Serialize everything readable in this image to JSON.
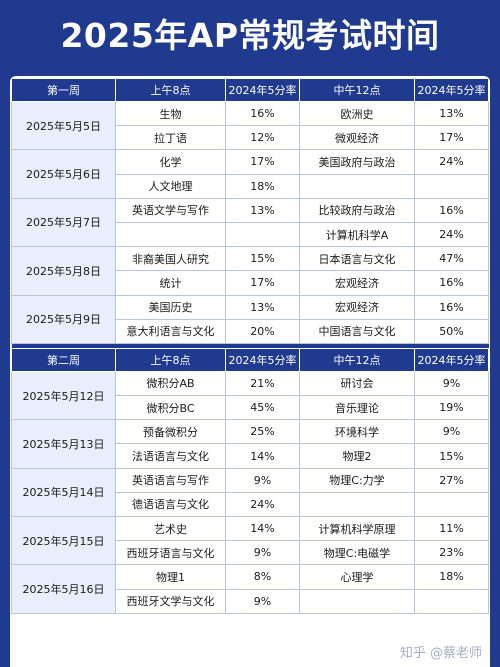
{
  "title": "2025年AP常规考试时间",
  "colors": {
    "brand": "#1f3a8e",
    "grid": "#b8c3dc",
    "date_bg": "#e8eefb"
  },
  "weeks": [
    {
      "headers": [
        "第一周",
        "上午8点",
        "2024年5分率",
        "中午12点",
        "2024年5分率"
      ],
      "days": [
        {
          "date": "2025年5月5日",
          "rows": [
            [
              "生物",
              "16%",
              "欧洲史",
              "13%"
            ],
            [
              "拉丁语",
              "12%",
              "微观经济",
              "17%"
            ]
          ]
        },
        {
          "date": "2025年5月6日",
          "rows": [
            [
              "化学",
              "17%",
              "美国政府与政治",
              "24%"
            ],
            [
              "人文地理",
              "18%",
              "",
              ""
            ]
          ]
        },
        {
          "date": "2025年5月7日",
          "rows": [
            [
              "英语文学与写作",
              "13%",
              "比较政府与政治",
              "16%"
            ],
            [
              "",
              "",
              "计算机科学A",
              "24%"
            ]
          ]
        },
        {
          "date": "2025年5月8日",
          "rows": [
            [
              "非裔美国人研究",
              "15%",
              "日本语言与文化",
              "47%"
            ],
            [
              "统计",
              "17%",
              "宏观经济",
              "16%"
            ]
          ]
        },
        {
          "date": "2025年5月9日",
          "rows": [
            [
              "美国历史",
              "13%",
              "宏观经济",
              "16%"
            ],
            [
              "意大利语言与文化",
              "20%",
              "中国语言与文化",
              "50%"
            ]
          ]
        }
      ]
    },
    {
      "headers": [
        "第二周",
        "上午8点",
        "2024年5分率",
        "中午12点",
        "2024年5分率"
      ],
      "days": [
        {
          "date": "2025年5月12日",
          "rows": [
            [
              "微积分AB",
              "21%",
              "研讨会",
              "9%"
            ],
            [
              "微积分BC",
              "45%",
              "音乐理论",
              "19%"
            ]
          ]
        },
        {
          "date": "2025年5月13日",
          "rows": [
            [
              "预备微积分",
              "25%",
              "环境科学",
              "9%"
            ],
            [
              "法语语言与文化",
              "14%",
              "物理2",
              "15%"
            ]
          ]
        },
        {
          "date": "2025年5月14日",
          "rows": [
            [
              "英语语言与写作",
              "9%",
              "物理C:力学",
              "27%"
            ],
            [
              "德语语言与文化",
              "24%",
              "",
              ""
            ]
          ]
        },
        {
          "date": "2025年5月15日",
          "rows": [
            [
              "艺术史",
              "14%",
              "计算机科学原理",
              "11%"
            ],
            [
              "西班牙语言与文化",
              "9%",
              "物理C:电磁学",
              "23%"
            ]
          ]
        },
        {
          "date": "2025年5月16日",
          "rows": [
            [
              "物理1",
              "8%",
              "心理学",
              "18%"
            ],
            [
              "西班牙文学与文化",
              "9%",
              "",
              ""
            ]
          ]
        }
      ]
    }
  ],
  "watermark": "知乎 @蔡老师"
}
